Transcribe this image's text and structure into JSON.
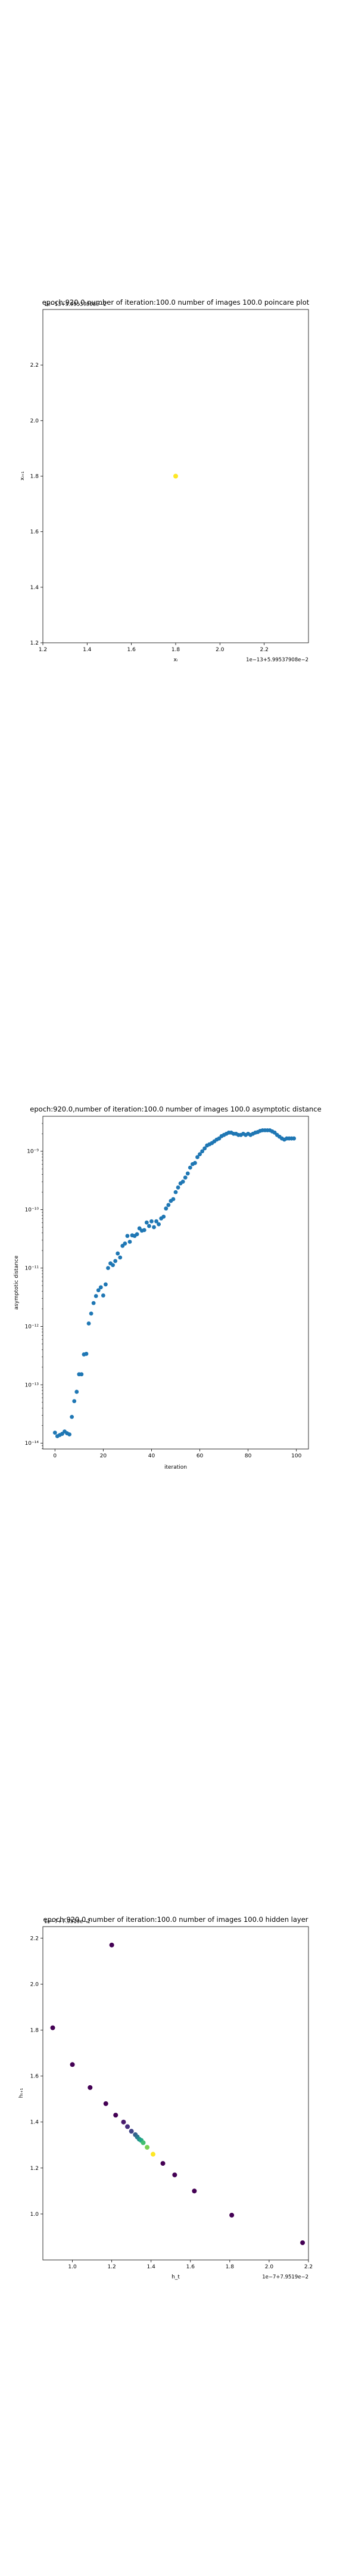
{
  "chart_data": [
    {
      "type": "scatter",
      "title": "epoch:920.0,number of iteration:100.0 number of images 100.0 poincare plot",
      "xlabel": "xᵢ",
      "ylabel": "xᵢ₊₁",
      "offset_top": "1e−13+5.99537908e−2",
      "offset_bottom": "1e−13+5.99537908e−2",
      "xlim": [
        1.2,
        2.4
      ],
      "ylim": [
        1.2,
        2.4
      ],
      "xticks": [
        1.2,
        1.4,
        1.6,
        1.8,
        2.0,
        2.2
      ],
      "xtick_labels": [
        "1.2",
        "1.4",
        "1.6",
        "1.8",
        "2.0",
        "2.2"
      ],
      "yticks": [
        1.2,
        1.4,
        1.6,
        1.8,
        2.0,
        2.2
      ],
      "ytick_labels": [
        "1.2",
        "1.4",
        "1.6",
        "1.8",
        "2.0",
        "2.2"
      ],
      "points": [
        {
          "x": 1.8,
          "y": 1.8
        }
      ],
      "color": "#fde725"
    },
    {
      "type": "scatter",
      "title": "epoch:920.0,number of iteration:100.0  number of images 100.0 asymptotic distance",
      "xlabel": "iteration",
      "ylabel": "asymptotic distance",
      "y_scale": "log",
      "xlim": [
        -5,
        105
      ],
      "ylim_exp": [
        -14.1,
        -8.4
      ],
      "xticks": [
        0,
        20,
        40,
        60,
        80,
        100
      ],
      "xtick_labels": [
        "0",
        "20",
        "40",
        "60",
        "80",
        "100"
      ],
      "yticks_exp": [
        -14,
        -13,
        -12,
        -11,
        -10,
        -9
      ],
      "ytick_labels": [
        "10⁻¹⁴",
        "10⁻¹³",
        "10⁻¹²",
        "10⁻¹¹",
        "10⁻¹⁰",
        "10⁻⁹"
      ],
      "x": [
        0,
        1,
        2,
        3,
        4,
        5,
        6,
        7,
        8,
        9,
        10,
        11,
        12,
        13,
        14,
        15,
        16,
        17,
        18,
        19,
        20,
        21,
        22,
        23,
        24,
        25,
        26,
        27,
        28,
        29,
        30,
        31,
        32,
        33,
        34,
        35,
        36,
        37,
        38,
        39,
        40,
        41,
        42,
        43,
        44,
        45,
        46,
        47,
        48,
        49,
        50,
        51,
        52,
        53,
        54,
        55,
        56,
        57,
        58,
        59,
        60,
        61,
        62,
        63,
        64,
        65,
        66,
        67,
        68,
        69,
        70,
        71,
        72,
        73,
        74,
        75,
        76,
        77,
        78,
        79,
        80,
        81,
        82,
        83,
        84,
        85,
        86,
        87,
        88,
        89,
        90,
        91,
        92,
        93,
        94,
        95,
        96,
        97,
        98,
        99
      ],
      "log10_y": [
        -13.82,
        -13.88,
        -13.86,
        -13.84,
        -13.8,
        -13.83,
        -13.85,
        -13.55,
        -13.28,
        -13.12,
        -12.82,
        -12.82,
        -12.48,
        -12.47,
        -11.95,
        -11.78,
        -11.6,
        -11.48,
        -11.38,
        -11.33,
        -11.47,
        -11.28,
        -11.0,
        -10.92,
        -10.95,
        -10.88,
        -10.75,
        -10.82,
        -10.62,
        -10.58,
        -10.45,
        -10.55,
        -10.44,
        -10.45,
        -10.42,
        -10.32,
        -10.36,
        -10.35,
        -10.22,
        -10.28,
        -10.2,
        -10.3,
        -10.2,
        -10.25,
        -10.15,
        -10.12,
        -9.98,
        -9.92,
        -9.85,
        -9.82,
        -9.7,
        -9.62,
        -9.55,
        -9.52,
        -9.45,
        -9.38,
        -9.28,
        -9.22,
        -9.2,
        -9.1,
        -9.05,
        -9.0,
        -8.95,
        -8.9,
        -8.88,
        -8.86,
        -8.83,
        -8.8,
        -8.78,
        -8.74,
        -8.72,
        -8.7,
        -8.68,
        -8.68,
        -8.7,
        -8.7,
        -8.72,
        -8.72,
        -8.7,
        -8.72,
        -8.7,
        -8.72,
        -8.7,
        -8.68,
        -8.67,
        -8.65,
        -8.64,
        -8.64,
        -8.64,
        -8.64,
        -8.66,
        -8.68,
        -8.72,
        -8.75,
        -8.78,
        -8.8,
        -8.78,
        -8.78,
        -8.78,
        -8.78
      ],
      "color": "#1f77b4"
    },
    {
      "type": "scatter",
      "title": "epoch:920.0,number of iteration:100.0  number of images 100.0 hidden layer",
      "xlabel": "h_t",
      "ylabel": "hₜ₊₁",
      "offset_top": "1e−7+7.9519e−2",
      "offset_bottom": "1e−7+7.9519e−2",
      "xlim": [
        0.85,
        2.2
      ],
      "ylim": [
        0.8,
        2.25
      ],
      "xticks": [
        1.0,
        1.2,
        1.4,
        1.6,
        1.8,
        2.0,
        2.2
      ],
      "xtick_labels": [
        "1.0",
        "1.2",
        "1.4",
        "1.6",
        "1.8",
        "2.0",
        "2.2"
      ],
      "yticks": [
        1.0,
        1.2,
        1.4,
        1.6,
        1.8,
        2.0,
        2.2
      ],
      "ytick_labels": [
        "1.0",
        "1.2",
        "1.4",
        "1.6",
        "1.8",
        "2.0",
        "2.2"
      ],
      "points": [
        {
          "x": 0.9,
          "y": 1.81
        },
        {
          "x": 1.2,
          "y": 2.17
        },
        {
          "x": 1.0,
          "y": 1.65
        },
        {
          "x": 1.09,
          "y": 1.55
        },
        {
          "x": 1.17,
          "y": 1.48
        },
        {
          "x": 1.22,
          "y": 1.43
        },
        {
          "x": 1.26,
          "y": 1.4
        },
        {
          "x": 1.28,
          "y": 1.38
        },
        {
          "x": 1.3,
          "y": 1.36
        },
        {
          "x": 1.32,
          "y": 1.345
        },
        {
          "x": 1.33,
          "y": 1.335
        },
        {
          "x": 1.34,
          "y": 1.325
        },
        {
          "x": 1.35,
          "y": 1.32
        },
        {
          "x": 1.36,
          "y": 1.31
        },
        {
          "x": 1.38,
          "y": 1.29
        },
        {
          "x": 1.41,
          "y": 1.26
        },
        {
          "x": 1.46,
          "y": 1.22
        },
        {
          "x": 1.52,
          "y": 1.17
        },
        {
          "x": 1.62,
          "y": 1.1
        },
        {
          "x": 1.81,
          "y": 0.995
        },
        {
          "x": 2.17,
          "y": 0.875
        }
      ],
      "colors": [
        "#440154",
        "#440154",
        "#440154",
        "#440154",
        "#440154",
        "#440154",
        "#481a6c",
        "#472f7d",
        "#414487",
        "#35608d",
        "#2a788e",
        "#21918c",
        "#22a884",
        "#44bf70",
        "#7ad151",
        "#fde725",
        "#440154",
        "#440154",
        "#440154",
        "#440154",
        "#440154"
      ]
    }
  ]
}
